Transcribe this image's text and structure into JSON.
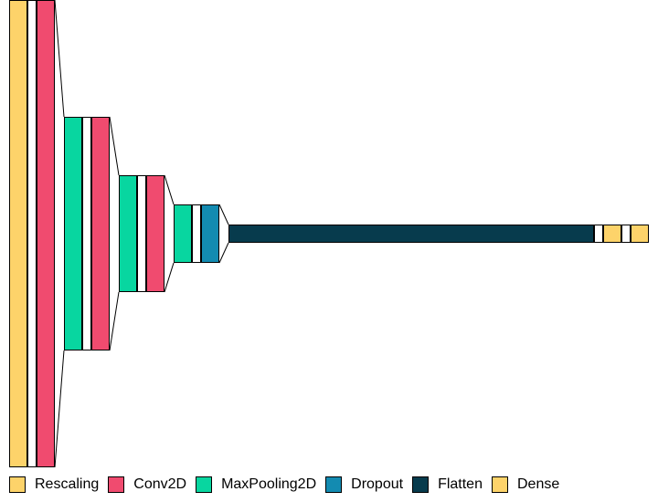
{
  "legend": [
    {
      "label": "Rescaling",
      "color": "#fdd36a"
    },
    {
      "label": "Conv2D",
      "color": "#f04b6f"
    },
    {
      "label": "MaxPooling2D",
      "color": "#08d6a0"
    },
    {
      "label": "Dropout",
      "color": "#138bb1"
    },
    {
      "label": "Flatten",
      "color": "#073b4d"
    },
    {
      "label": "Dense",
      "color": "#fdd36a"
    }
  ],
  "layers": [
    {
      "type": "Rescaling",
      "color": "#fdd36a"
    },
    {
      "type": "Conv2D",
      "color": "#f04b6f"
    },
    {
      "type": "MaxPooling2D",
      "color": "#08d6a0"
    },
    {
      "type": "Conv2D",
      "color": "#f04b6f"
    },
    {
      "type": "MaxPooling2D",
      "color": "#08d6a0"
    },
    {
      "type": "Conv2D",
      "color": "#f04b6f"
    },
    {
      "type": "MaxPooling2D",
      "color": "#08d6a0"
    },
    {
      "type": "Dropout",
      "color": "#138bb1"
    },
    {
      "type": "Flatten",
      "color": "#073b4d"
    },
    {
      "type": "Dense",
      "color": "#fdd36a"
    },
    {
      "type": "Dense",
      "color": "#fdd36a"
    }
  ]
}
